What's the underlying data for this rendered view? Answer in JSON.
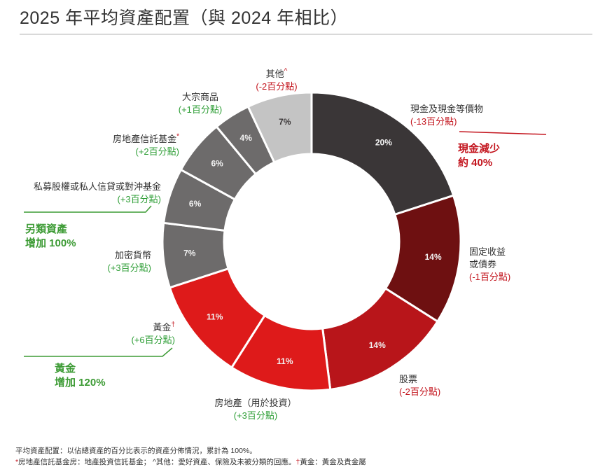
{
  "title": "2025 年平均資產配置（與 2024 年相比）",
  "colors": {
    "dark_grey": "#3a3637",
    "dark_red": "#6e1011",
    "red": "#b8151a",
    "bright_red": "#de1a1a",
    "grey": "#6d6b6b",
    "light_grey": "#c4c4c4",
    "green": "#3d9b35",
    "callout_red": "#c3141d"
  },
  "chart_data": {
    "type": "pie",
    "donut": true,
    "unit": "%",
    "categories": [
      "現金及現金等價物",
      "固定收益或債券",
      "股票",
      "房地產（用於投資）",
      "黃金",
      "加密貨幣",
      "私募股權或私人信貸或對沖基金",
      "房地產信託基金",
      "大宗商品",
      "其他"
    ],
    "values": [
      20,
      14,
      14,
      11,
      11,
      7,
      6,
      6,
      4,
      7
    ],
    "value_labels": [
      "20%",
      "14%",
      "14%",
      "11%",
      "11%",
      "7%",
      "6%",
      "6%",
      "4%",
      "7%"
    ],
    "change_labels": [
      "(-13百分點)",
      "(-1百分點)",
      "(-2百分點)",
      "(+3百分點)",
      "(+6百分點)",
      "(+3百分點)",
      "(+3百分點)",
      "(+2百分點)",
      "(+1百分點)",
      "(-2百分點)"
    ],
    "slice_colors": [
      "#3a3637",
      "#6e1011",
      "#b8151a",
      "#de1a1a",
      "#de1a1a",
      "#6d6b6b",
      "#6d6b6b",
      "#6d6b6b",
      "#6d6b6b",
      "#c4c4c4"
    ]
  },
  "labels": {
    "cash": {
      "name": "現金及現金等價物",
      "change": "(-13百分點)"
    },
    "fixed_income": {
      "name1": "固定收益",
      "name2": "或債券",
      "change": "(-1百分點)"
    },
    "equities": {
      "name": "股票",
      "change": "(-2百分點)"
    },
    "real_estate": {
      "name": "房地產（用於投資）",
      "change": "(+3百分點)"
    },
    "gold": {
      "name": "黃金",
      "mark": "†",
      "change": "(+6百分點)"
    },
    "crypto": {
      "name": "加密貨幣",
      "change": "(+3百分點)"
    },
    "private": {
      "name": "私募股權或私人信貸或對沖基金",
      "change": "(+3百分點)"
    },
    "reits": {
      "name": "房地產信託基金",
      "mark": "*",
      "change": "(+2百分點)"
    },
    "commodities": {
      "name": "大宗商品",
      "change": "(+1百分點)"
    },
    "other": {
      "name": "其他",
      "mark": "^",
      "change": "(-2百分點)"
    }
  },
  "callouts": {
    "cash_down": {
      "line1": "現金減少",
      "line2": "約 40%"
    },
    "alt_up": {
      "line1": "另類資產",
      "line2": "增加 100%"
    },
    "gold_up": {
      "line1": "黃金",
      "line2": "增加 120%"
    }
  },
  "footnotes": {
    "line1": "平均資產配置：以佔總資產的百分比表示的資產分佈情況，累計為 100%。",
    "line2_mark": "*",
    "line2_text": "房地產信託基金房：地產投資信託基金；  ^其他：愛好資產、保險及未被分類的回應。",
    "line2_mark2": "†",
    "line2_text2": "黃金：黃金及貴金屬"
  }
}
